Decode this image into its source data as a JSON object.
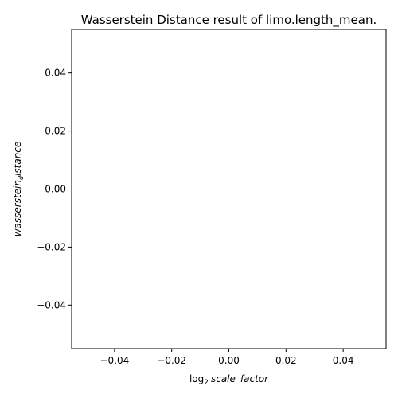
{
  "chart_data": {
    "type": "line",
    "title": "Wasserstein Distance result of limo.length_mean.",
    "xlabel": {
      "prefix": "log",
      "subscript": "2",
      "main": "scale_factor"
    },
    "ylabel": {
      "main": "wasserstein",
      "subscript": "d",
      "suffix": "istance"
    },
    "xlim": [
      -0.055,
      0.055
    ],
    "ylim": [
      -0.055,
      0.055
    ],
    "x_ticks": [
      -0.04,
      -0.02,
      0.0,
      0.02,
      0.04
    ],
    "x_tick_labels": [
      "−0.04",
      "−0.02",
      "0.00",
      "0.02",
      "0.04"
    ],
    "y_ticks": [
      0.04,
      0.02,
      0.0,
      -0.02,
      -0.04
    ],
    "y_tick_labels": [
      "0.04",
      "0.02",
      "0.00",
      "−0.02",
      "−0.04"
    ],
    "series": [],
    "grid": false,
    "legend": "none"
  }
}
